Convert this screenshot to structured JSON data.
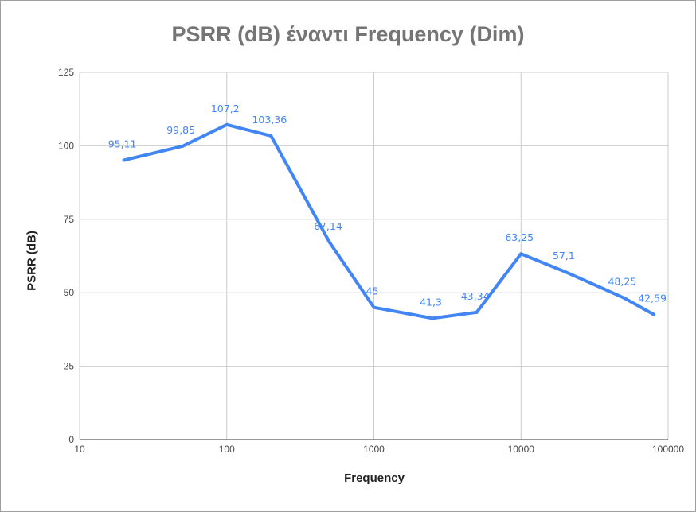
{
  "chart_data": {
    "type": "line",
    "title": "PSRR (dB) έναντι Frequency (Dim)",
    "xlabel": "Frequency",
    "ylabel": "PSRR (dB)",
    "x_scale": "log",
    "xlim": [
      10,
      100000
    ],
    "ylim": [
      0,
      125
    ],
    "x_ticks": [
      "10",
      "100",
      "1000",
      "10000",
      "100000"
    ],
    "y_ticks": [
      "0",
      "25",
      "50",
      "75",
      "100",
      "125"
    ],
    "grid": true,
    "legend": "none",
    "series": [
      {
        "color": "#4285f4",
        "x": [
          20,
          50,
          100,
          200,
          500,
          1000,
          2500,
          5000,
          10000,
          20000,
          50000,
          80000
        ],
        "values": [
          95.11,
          99.85,
          107.2,
          103.36,
          67.14,
          45,
          41.3,
          43.34,
          63.25,
          57.1,
          48.25,
          42.59
        ],
        "labels": [
          "95,11",
          "99,85",
          "107,2",
          "103,36",
          "67,14",
          "45",
          "41,3",
          "43,34",
          "63,25",
          "57,1",
          "48,25",
          "42,59"
        ]
      }
    ]
  }
}
